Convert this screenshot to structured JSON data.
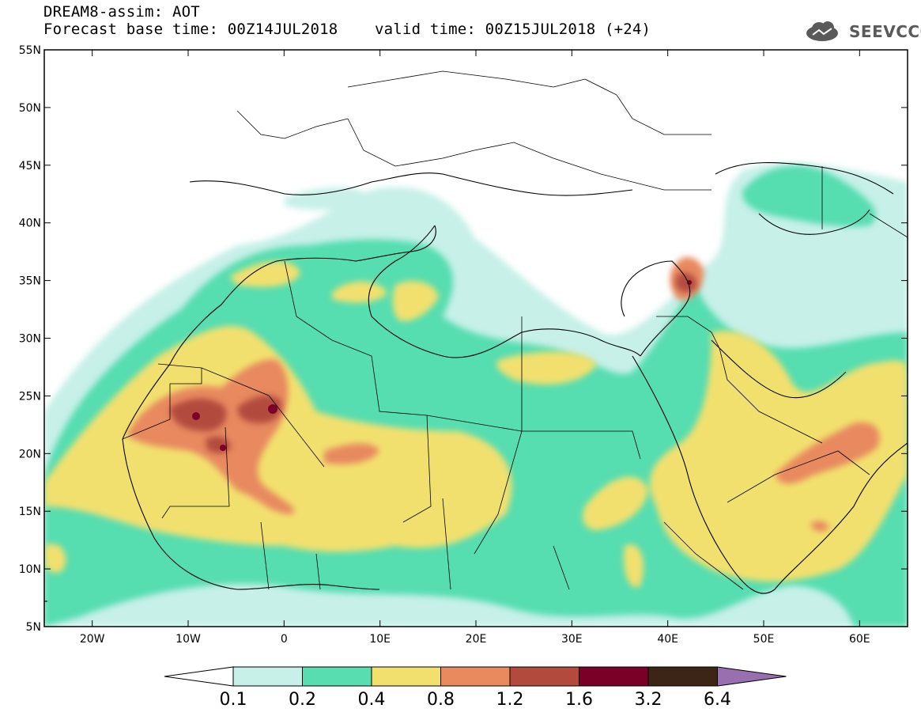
{
  "header": {
    "title": "DREAM8-assim: AOT",
    "base_time": "Forecast base time: 00Z14JUL2018",
    "valid_time": "valid time: 00Z15JUL2018 (+24)"
  },
  "logo": {
    "text": "SEEVCCC",
    "icon": "cloud-icon"
  },
  "axes": {
    "lat_labels": [
      "55N",
      "50N",
      "45N",
      "40N",
      "35N",
      "30N",
      "25N",
      "20N",
      "15N",
      "10N",
      "5N"
    ],
    "lon_labels": [
      "20W",
      "10W",
      "0",
      "10E",
      "20E",
      "30E",
      "40E",
      "50E",
      "60E"
    ],
    "lat_range": [
      5,
      55
    ],
    "lon_range": [
      -25,
      65
    ]
  },
  "colorbar": {
    "labels": [
      "0.1",
      "0.2",
      "0.4",
      "0.8",
      "1.2",
      "1.6",
      "3.2",
      "6.4"
    ],
    "colors": [
      "#ffffff",
      "#c6f0e8",
      "#57ddb0",
      "#f2e06e",
      "#e8895e",
      "#b24b3e",
      "#7a0028",
      "#3c2416",
      "#9a6fb0"
    ]
  },
  "colors": {
    "c0": "#c6f0e8",
    "c1": "#57ddb0",
    "c2": "#f2e06e",
    "c3": "#e8895e",
    "c4": "#b24b3e",
    "c5": "#7a0028"
  }
}
